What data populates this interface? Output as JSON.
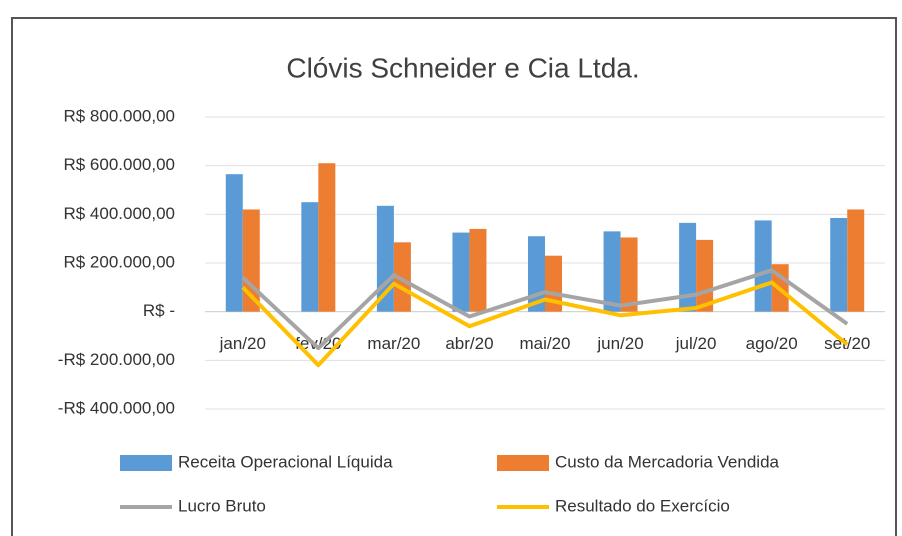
{
  "chart_data": {
    "type": "bar",
    "title": "Clóvis Schneider e Cia Ltda.",
    "categories": [
      "jan/20",
      "fev/20",
      "mar/20",
      "abr/20",
      "mai/20",
      "jun/20",
      "jul/20",
      "ago/20",
      "set/20"
    ],
    "series": [
      {
        "name": "Receita Operacional Líquida",
        "type": "bar",
        "color": "#5b9bd5",
        "values": [
          565000,
          450000,
          435000,
          325000,
          310000,
          330000,
          365000,
          375000,
          385000
        ]
      },
      {
        "name": "Custo da Mercadoria Vendida",
        "type": "bar",
        "color": "#ed7d31",
        "values": [
          420000,
          610000,
          285000,
          340000,
          230000,
          305000,
          295000,
          195000,
          420000
        ]
      },
      {
        "name": "Lucro Bruto",
        "type": "line",
        "color": "#a5a5a5",
        "values": [
          140000,
          -150000,
          150000,
          -20000,
          80000,
          25000,
          70000,
          170000,
          -50000
        ]
      },
      {
        "name": "Resultado do Exercício",
        "type": "line",
        "color": "#ffc000",
        "values": [
          100000,
          -220000,
          115000,
          -60000,
          50000,
          -15000,
          15000,
          120000,
          -135000
        ]
      }
    ],
    "ylim": [
      -400000,
      800000
    ],
    "yticks": [
      {
        "value": -400000,
        "label": "-R$ 400.000,00"
      },
      {
        "value": -200000,
        "label": "-R$ 200.000,00"
      },
      {
        "value": 0,
        "label": "R$ -"
      },
      {
        "value": 200000,
        "label": "R$ 200.000,00"
      },
      {
        "value": 400000,
        "label": "R$ 400.000,00"
      },
      {
        "value": 600000,
        "label": "R$ 600.000,00"
      },
      {
        "value": 800000,
        "label": "R$ 800.000,00"
      }
    ],
    "grid": true,
    "legend": "bottom"
  }
}
